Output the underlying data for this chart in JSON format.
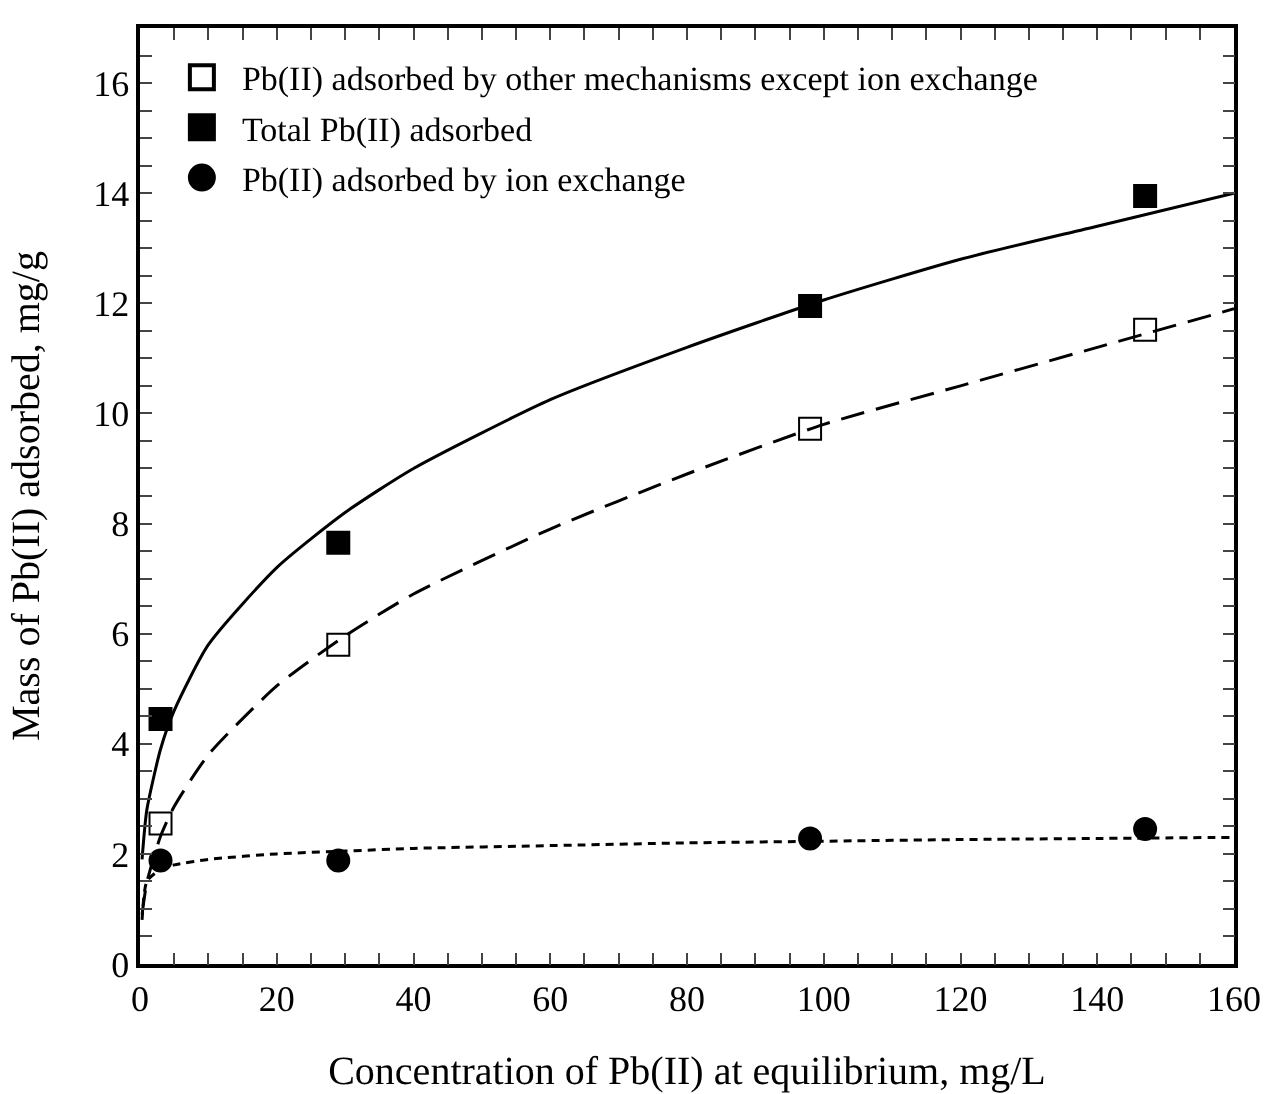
{
  "chart_data": {
    "type": "scatter",
    "xlabel": "Concentration of Pb(II) at equilibrium, mg/L",
    "ylabel": "Mass of Pb(II) adsorbed, mg/g",
    "x": [
      3,
      29,
      98,
      147
    ],
    "xlim": [
      0,
      160
    ],
    "ylim": [
      0,
      17
    ],
    "xticks": [
      0,
      {
        "value": 5,
        "label": null
      },
      20,
      {
        "value": 10,
        "label": null
      },
      {
        "value": 15,
        "label": null
      },
      {
        "value": 25,
        "label": null
      },
      40,
      {
        "value": 30,
        "label": null
      },
      {
        "value": 35,
        "label": null
      },
      {
        "value": 45,
        "label": null
      },
      60,
      {
        "value": 50,
        "label": null
      },
      {
        "value": 55,
        "label": null
      },
      {
        "value": 65,
        "label": null
      },
      80,
      {
        "value": 70,
        "label": null
      },
      {
        "value": 75,
        "label": null
      },
      {
        "value": 85,
        "label": null
      },
      100,
      {
        "value": 90,
        "label": null
      },
      {
        "value": 95,
        "label": null
      },
      {
        "value": 105,
        "label": null
      },
      120,
      {
        "value": 110,
        "label": null
      },
      {
        "value": 115,
        "label": null
      },
      {
        "value": 125,
        "label": null
      },
      140,
      {
        "value": 130,
        "label": null
      },
      {
        "value": 135,
        "label": null
      },
      {
        "value": 145,
        "label": null
      },
      160,
      {
        "value": 150,
        "label": null
      },
      {
        "value": 155,
        "label": null
      }
    ],
    "yticks": [
      0,
      {
        "value": 0.5,
        "label": null
      },
      {
        "value": 1,
        "label": null
      },
      {
        "value": 1.5,
        "label": null
      },
      2,
      {
        "value": 2.5,
        "label": null
      },
      {
        "value": 3,
        "label": null
      },
      {
        "value": 3.5,
        "label": null
      },
      4,
      {
        "value": 4.5,
        "label": null
      },
      {
        "value": 5,
        "label": null
      },
      {
        "value": 5.5,
        "label": null
      },
      6,
      {
        "value": 6.5,
        "label": null
      },
      {
        "value": 7,
        "label": null
      },
      {
        "value": 7.5,
        "label": null
      },
      8,
      {
        "value": 8.5,
        "label": null
      },
      {
        "value": 9,
        "label": null
      },
      {
        "value": 9.5,
        "label": null
      },
      10,
      {
        "value": 10.5,
        "label": null
      },
      {
        "value": 11,
        "label": null
      },
      {
        "value": 11.5,
        "label": null
      },
      12,
      {
        "value": 12.5,
        "label": null
      },
      {
        "value": 13,
        "label": null
      },
      {
        "value": 13.5,
        "label": null
      },
      14,
      {
        "value": 14.5,
        "label": null
      },
      {
        "value": 15,
        "label": null
      },
      {
        "value": 15.5,
        "label": null
      },
      16,
      {
        "value": 16.5,
        "label": null
      }
    ],
    "grid": false,
    "legend": "top left",
    "series": [
      {
        "name": "Pb(II) adsorbed by other mechanisms except ion exchange",
        "color": "#ffffff",
        "marker": "square",
        "values": [
          2.55,
          5.8,
          9.72,
          11.52
        ]
      },
      {
        "name": "Total Pb(II) adsorbed",
        "color": "#000000",
        "marker": "square",
        "values": [
          4.45,
          7.65,
          11.95,
          13.95
        ]
      },
      {
        "name": "Pb(II) adsorbed by ion exchange",
        "color": "#000000",
        "marker": "circle",
        "values": [
          1.88,
          1.88,
          2.28,
          2.45
        ]
      },
      {
        "type": "line",
        "color": "#000000",
        "line_style": "solid",
        "marker": "none",
        "x": [
          0.3,
          1,
          3,
          5,
          10,
          20,
          30,
          40,
          60,
          80,
          100,
          120,
          140,
          160
        ],
        "values": [
          1.9,
          2.8,
          3.9,
          4.6,
          5.8,
          7.2,
          8.2,
          9.0,
          10.25,
          11.2,
          12.06,
          12.8,
          13.4,
          14.0
        ]
      },
      {
        "type": "line",
        "color": "#000000",
        "line_style": "dashed",
        "marker": "none",
        "x": [
          0.3,
          1,
          3,
          5,
          10,
          20,
          30,
          40,
          60,
          80,
          100,
          120,
          140,
          160
        ],
        "values": [
          0.9,
          1.48,
          2.32,
          2.86,
          3.8,
          5.05,
          5.96,
          6.72,
          7.9,
          8.9,
          9.8,
          10.5,
          11.2,
          11.9
        ]
      },
      {
        "type": "line",
        "color": "#000000",
        "line_style": "dotted",
        "marker": "none",
        "x": [
          0.3,
          1,
          3,
          5,
          10,
          20,
          30,
          40,
          60,
          80,
          100,
          120,
          140,
          160
        ],
        "values": [
          0.8,
          1.5,
          1.72,
          1.8,
          1.9,
          2.0,
          2.05,
          2.1,
          2.15,
          2.2,
          2.23,
          2.26,
          2.28,
          2.3
        ]
      }
    ]
  }
}
